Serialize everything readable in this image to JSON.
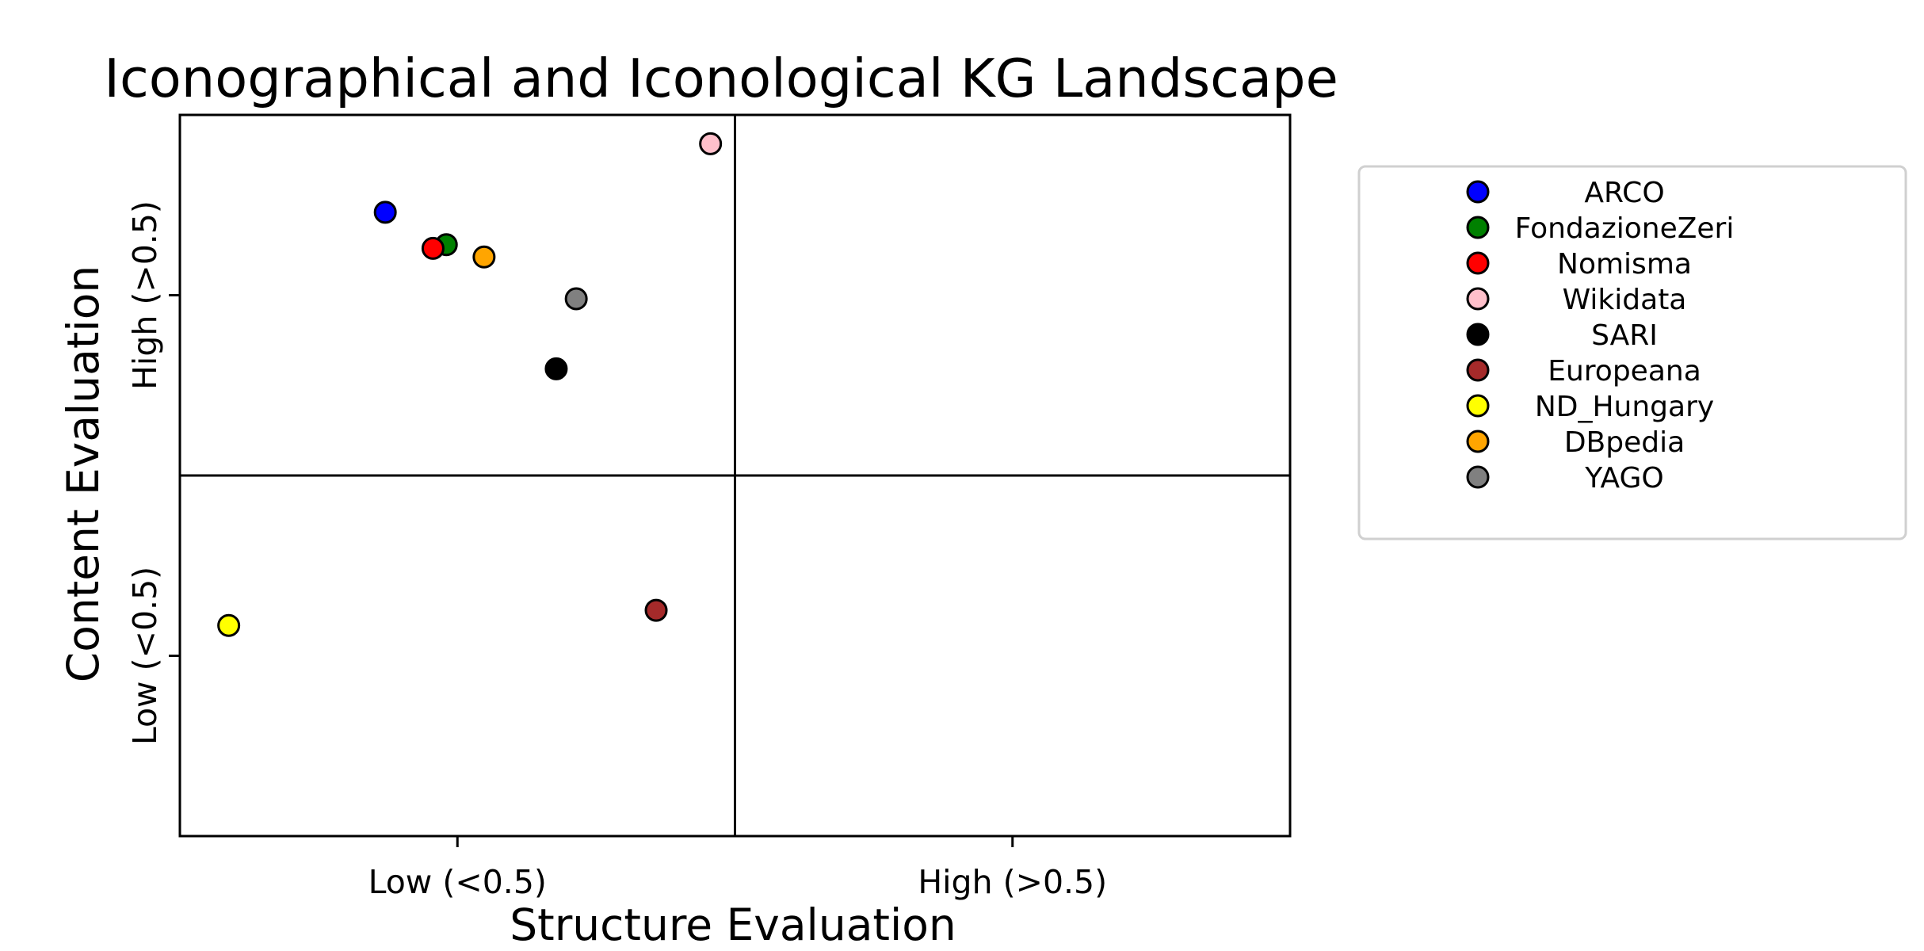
{
  "chart_data": {
    "type": "scatter",
    "title": "Iconographical and Iconological KG Landscape",
    "xlabel": "Structure Evaluation",
    "ylabel": "Content Evaluation",
    "xlim": [
      0,
      1
    ],
    "ylim": [
      0,
      1
    ],
    "xticks": [
      {
        "value": 0.25,
        "label": "Low (<0.5)"
      },
      {
        "value": 0.75,
        "label": "High (>0.5)"
      }
    ],
    "yticks": [
      {
        "value": 0.25,
        "label": "Low (<0.5)"
      },
      {
        "value": 0.75,
        "label": "High (>0.5)"
      }
    ],
    "quadrant_lines": {
      "x": 0.5,
      "y": 0.5
    },
    "legend_position": "right",
    "series": [
      {
        "name": "ARCO",
        "color": "#0000ff",
        "x": 0.185,
        "y": 0.865
      },
      {
        "name": "FondazioneZeri",
        "color": "#008000",
        "x": 0.24,
        "y": 0.82
      },
      {
        "name": "Nomisma",
        "color": "#ff0000",
        "x": 0.228,
        "y": 0.815
      },
      {
        "name": "Wikidata",
        "color": "#ffc0cb",
        "x": 0.478,
        "y": 0.96
      },
      {
        "name": "SARI",
        "color": "#000000",
        "x": 0.339,
        "y": 0.648
      },
      {
        "name": "Europeana",
        "color": "#a52a2a",
        "x": 0.429,
        "y": 0.313
      },
      {
        "name": "ND_Hungary",
        "color": "#ffff00",
        "x": 0.044,
        "y": 0.292
      },
      {
        "name": "DBpedia",
        "color": "#ffa500",
        "x": 0.274,
        "y": 0.803
      },
      {
        "name": "YAGO",
        "color": "#808080",
        "x": 0.357,
        "y": 0.745
      }
    ]
  }
}
